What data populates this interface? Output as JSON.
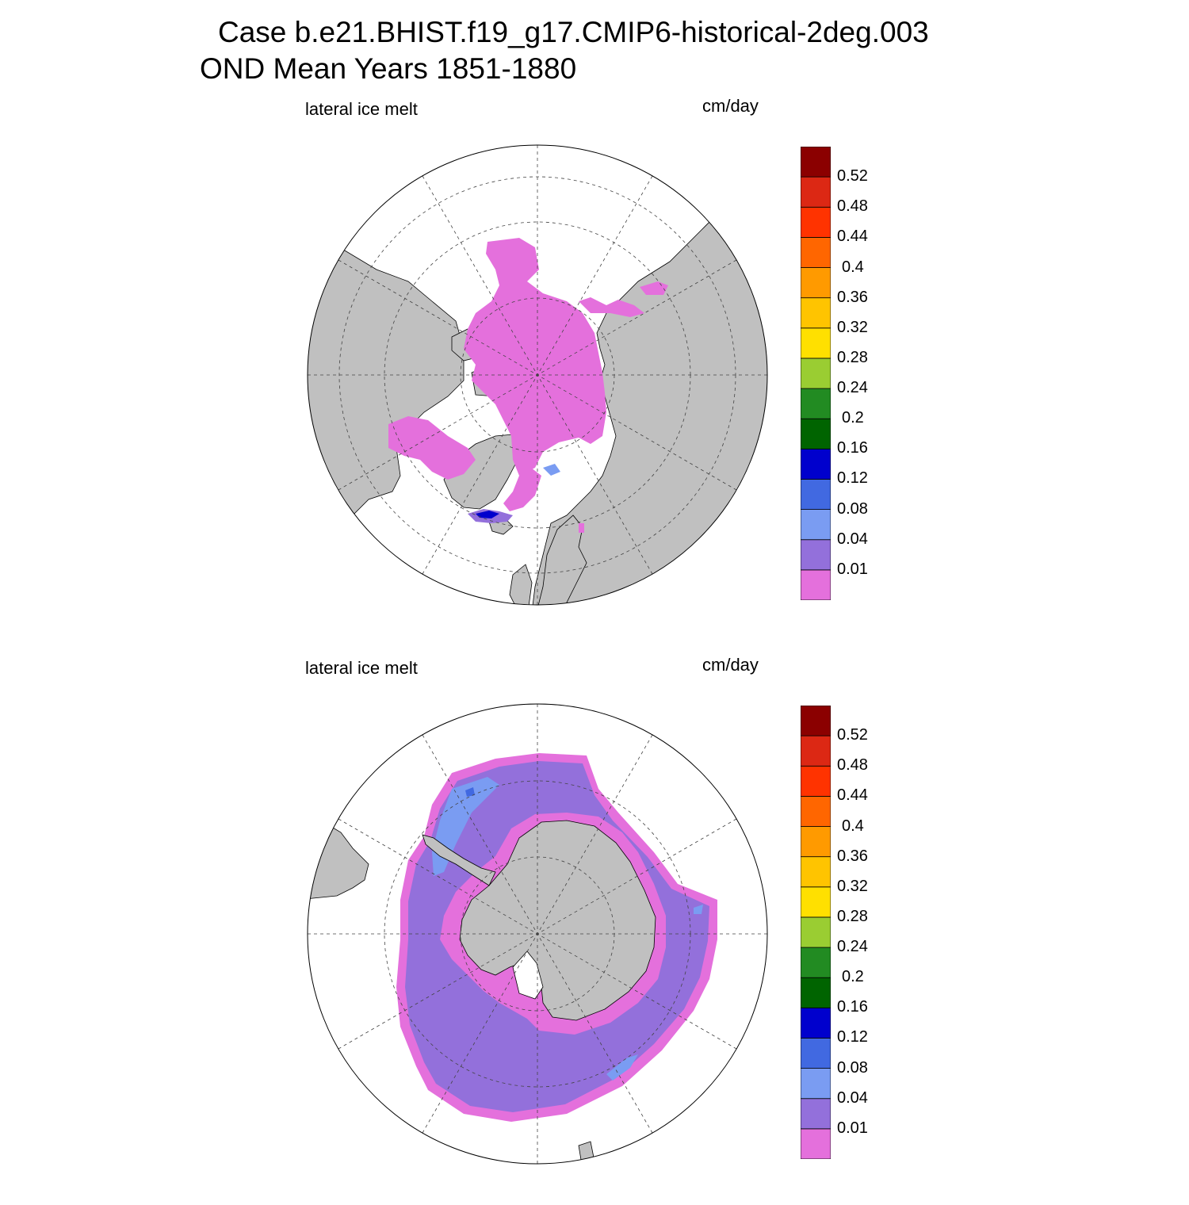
{
  "title": {
    "line1": "Case b.e21.BHIST.f19_g17.CMIP6-historical-2deg.003",
    "line2": "OND Mean   Years 1851-1880"
  },
  "panels": [
    {
      "id": "arctic",
      "hemisphere": "north",
      "variable": "lateral ice melt",
      "units": "cm/day"
    },
    {
      "id": "antarctic",
      "hemisphere": "south",
      "variable": "lateral ice melt",
      "units": "cm/day"
    }
  ],
  "colorbar": {
    "levels": [
      "0.01",
      "0.04",
      "0.08",
      "0.12",
      "0.16",
      "0.2",
      "0.24",
      "0.28",
      "0.32",
      "0.36",
      "0.4",
      "0.44",
      "0.48",
      "0.52"
    ],
    "colors": [
      "#e470dc",
      "#9370db",
      "#7a9cf2",
      "#4169e1",
      "#0000cd",
      "#006400",
      "#228b22",
      "#9acd32",
      "#ffe000",
      "#ffc400",
      "#ff9a00",
      "#ff6600",
      "#ff3300",
      "#dc2814",
      "#8b0000"
    ]
  },
  "map_colors": {
    "land": "#c0c0c0",
    "ocean": "#ffffff",
    "coast": "#000000",
    "grid": "#444444"
  }
}
